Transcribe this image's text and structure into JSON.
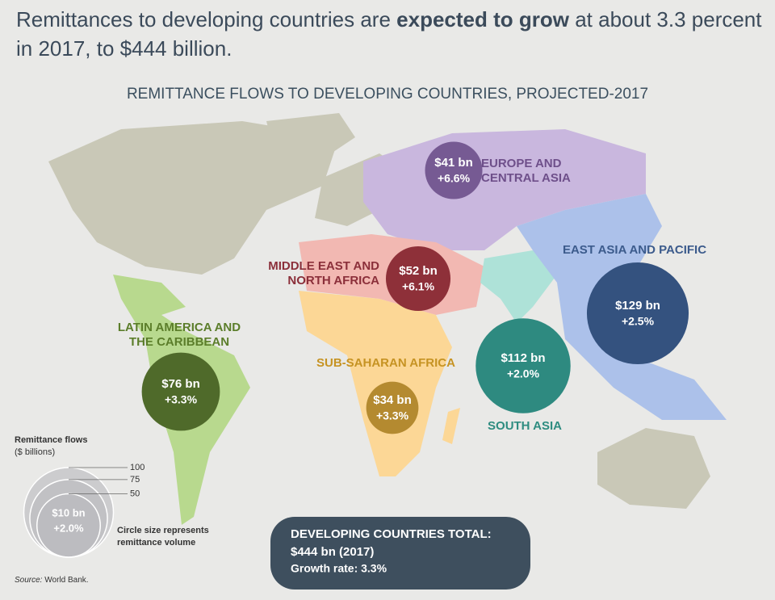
{
  "header": {
    "headline_line1": [
      "Remittances to developing countries are ",
      "expected to grow",
      " at about 3.3 percent"
    ],
    "headline_line2": "in 2017, to $444 billion.",
    "title": "REMITTANCE FLOWS TO DEVELOPING COUNTRIES, PROJECTED-2017"
  },
  "regions": [
    {
      "name": [
        "EUROPE AND",
        "CENTRAL ASIA"
      ],
      "value": 41,
      "value_label": "$41 bn",
      "growth_label": "+6.6%",
      "color": "#765a93",
      "label_color": "#6e4f8a"
    },
    {
      "name": [
        "MIDDLE EAST AND",
        "NORTH AFRICA"
      ],
      "value": 52,
      "value_label": "$52 bn",
      "growth_label": "+6.1%",
      "color": "#8e3039",
      "label_color": "#8b2f3a"
    },
    {
      "name": [
        "LATIN AMERICA AND",
        "THE CARIBBEAN"
      ],
      "value": 76,
      "value_label": "$76 bn",
      "growth_label": "+3.3%",
      "color": "#4f6a2a",
      "label_color": "#5b7d2a"
    },
    {
      "name": [
        "SUB-SAHARAN AFRICA"
      ],
      "value": 34,
      "value_label": "$34 bn",
      "growth_label": "+3.3%",
      "color": "#b48a30",
      "label_color": "#c69323"
    },
    {
      "name": [
        "SOUTH ASIA"
      ],
      "value": 112,
      "value_label": "$112 bn",
      "growth_label": "+2.0%",
      "color": "#2e8a80",
      "label_color": "#2e8c80"
    },
    {
      "name": [
        "EAST ASIA AND PACIFIC"
      ],
      "value": 129,
      "value_label": "$129 bn",
      "growth_label": "+2.5%",
      "color": "#34527f",
      "label_color": "#3c5b8c"
    }
  ],
  "legend": {
    "title": "Remittance flows",
    "unit": "($ billions)",
    "sizes": [
      100,
      75,
      50
    ],
    "sample_value_label": "$10 bn",
    "sample_growth_label": "+2.0%",
    "note": [
      "Circle size represents",
      "remittance volume"
    ]
  },
  "total": {
    "title": "DEVELOPING COUNTRIES TOTAL:",
    "value_label": "$444 bn (2017)",
    "growth_label": "Growth rate: 3.3%"
  },
  "source": {
    "label": "Source:",
    "text": " World Bank."
  }
}
